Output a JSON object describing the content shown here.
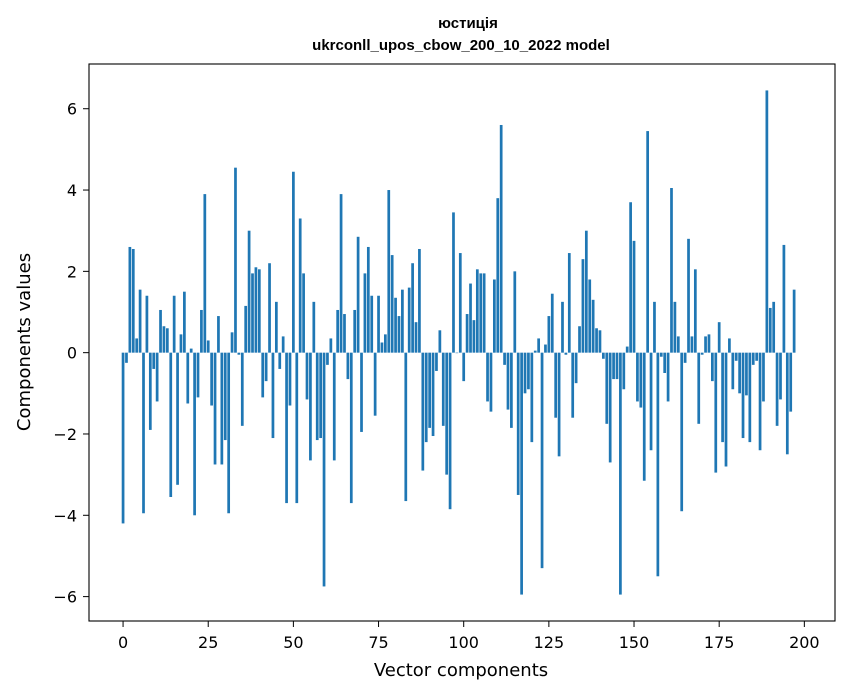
{
  "chart_data": {
    "type": "bar",
    "title_line1": "юстиція",
    "title_line2": "ukrconll_upos_cbow_200_10_2022 model",
    "xlabel": "Vector components",
    "ylabel": "Components values",
    "xlim": [
      -10,
      209
    ],
    "ylim": [
      -6.6,
      7.1
    ],
    "xticks": [
      0,
      25,
      50,
      75,
      100,
      125,
      150,
      175,
      200
    ],
    "yticks": [
      -6,
      -4,
      -2,
      0,
      2,
      4,
      6
    ],
    "bar_color": "#1f77b4",
    "grid": false,
    "values": [
      -4.2,
      -0.25,
      2.6,
      2.55,
      0.35,
      1.55,
      -3.95,
      1.4,
      -1.9,
      -0.4,
      -1.2,
      1.05,
      0.65,
      0.6,
      -3.55,
      1.4,
      -3.25,
      0.45,
      1.5,
      -1.25,
      0.1,
      -4.0,
      -1.1,
      1.05,
      3.9,
      0.3,
      -1.3,
      -2.75,
      0.9,
      -2.75,
      -2.15,
      -3.95,
      0.5,
      4.55,
      -0.05,
      -1.8,
      1.15,
      3.0,
      1.95,
      2.1,
      2.05,
      -1.1,
      -0.7,
      2.2,
      -2.1,
      1.25,
      -0.4,
      0.4,
      -3.7,
      -1.3,
      4.45,
      -3.7,
      3.3,
      1.95,
      -1.15,
      -2.65,
      1.25,
      -2.15,
      -2.1,
      -5.75,
      -0.3,
      0.35,
      -2.65,
      1.05,
      3.9,
      0.95,
      -0.65,
      -3.7,
      1.05,
      2.85,
      -1.95,
      1.95,
      2.6,
      1.4,
      -1.55,
      1.4,
      0.25,
      0.45,
      4.0,
      2.4,
      1.35,
      0.9,
      1.55,
      -3.65,
      1.6,
      2.2,
      0.75,
      2.55,
      -2.9,
      -2.2,
      -1.85,
      -2.05,
      -0.45,
      0.55,
      -1.8,
      -3.0,
      -3.85,
      3.45,
      0.0,
      2.45,
      -0.7,
      0.95,
      1.7,
      0.8,
      2.05,
      1.95,
      1.95,
      -1.2,
      -1.45,
      1.8,
      3.8,
      5.6,
      -0.3,
      -1.4,
      -1.85,
      2.0,
      -3.5,
      -5.95,
      -1.0,
      -0.9,
      -2.2,
      0.05,
      0.35,
      -5.3,
      0.2,
      0.9,
      1.45,
      -1.6,
      -2.55,
      1.25,
      -0.05,
      2.45,
      -1.6,
      -0.75,
      0.65,
      2.3,
      3.0,
      1.8,
      1.3,
      0.6,
      0.55,
      -0.15,
      -1.75,
      -2.7,
      -0.65,
      -0.65,
      -5.95,
      -0.9,
      0.15,
      3.7,
      2.75,
      -1.2,
      -1.35,
      -3.15,
      5.45,
      -2.4,
      1.25,
      -5.5,
      -0.1,
      -0.5,
      -1.2,
      4.05,
      1.25,
      0.4,
      -3.9,
      -0.25,
      2.8,
      0.4,
      2.05,
      -1.75,
      -0.05,
      0.4,
      0.45,
      -0.7,
      -2.95,
      0.75,
      -2.2,
      -2.8,
      0.35,
      -0.9,
      -0.2,
      -1.0,
      -2.1,
      -1.05,
      -2.2,
      -0.3,
      -0.2,
      -2.4,
      -1.2,
      6.45,
      1.1,
      1.25,
      -1.8,
      -1.15,
      2.65,
      -2.5,
      -1.45,
      1.55
    ]
  }
}
